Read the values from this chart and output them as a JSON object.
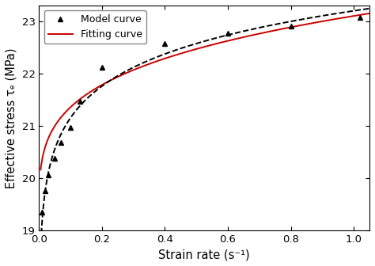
{
  "title": "",
  "xlabel": "Strain rate (s⁻¹)",
  "ylabel": "Effective stress τₑ (MPa)",
  "xlim": [
    0,
    1.05
  ],
  "ylim": [
    19,
    23.3
  ],
  "xticks": [
    0.0,
    0.2,
    0.4,
    0.6,
    0.8,
    1.0
  ],
  "yticks": [
    19,
    20,
    21,
    22,
    23
  ],
  "model_x": [
    0.01,
    0.02,
    0.03,
    0.05,
    0.07,
    0.1,
    0.13,
    0.2,
    0.4,
    0.6,
    0.8,
    1.02
  ],
  "model_y": [
    19.35,
    19.75,
    20.05,
    20.38,
    20.68,
    20.97,
    21.47,
    22.12,
    22.57,
    22.77,
    22.9,
    23.07
  ],
  "model_color": "#000000",
  "model_label": "Model curve",
  "model_linestyle": "--",
  "model_marker": "^",
  "model_markersize": 5,
  "model_linewidth": 1.4,
  "fit_color": "#cc0000",
  "fit_label": "Fitting curve",
  "fit_linewidth": 1.4,
  "background_color": "#ffffff",
  "legend_fontsize": 9,
  "axis_fontsize": 10.5,
  "tick_fontsize": 9.5,
  "fit_params": {
    "a": 19.05,
    "b": 4.05,
    "c": 0.245
  }
}
